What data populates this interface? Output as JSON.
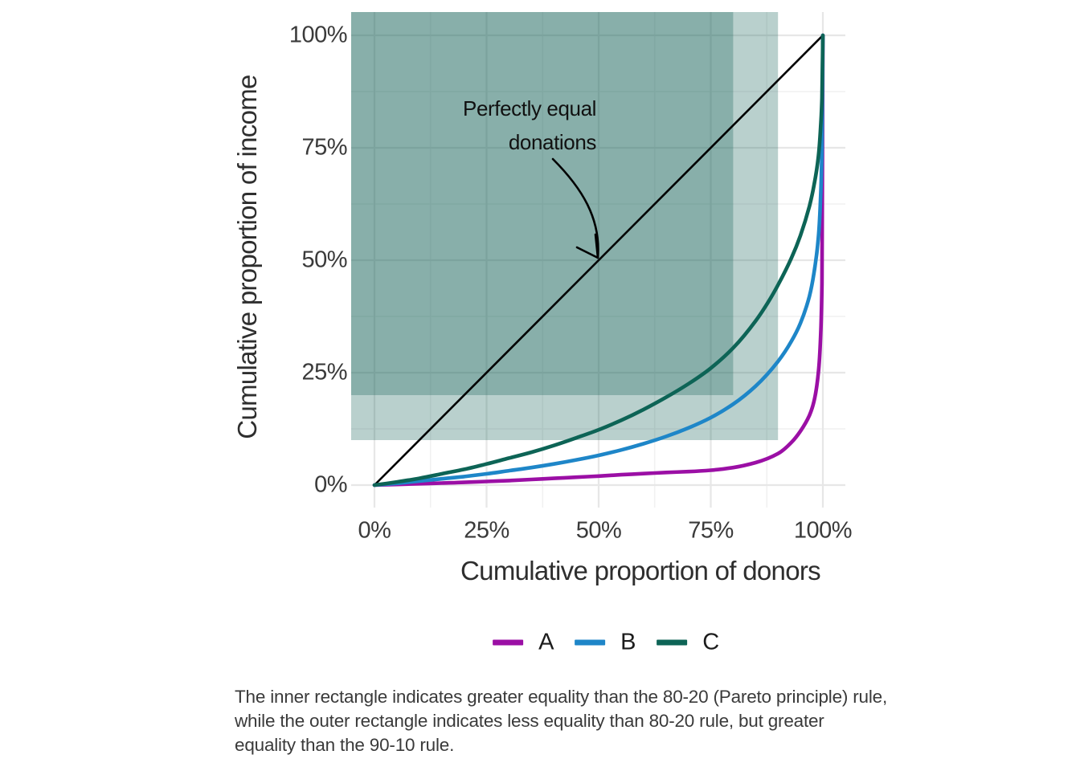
{
  "chart_data": {
    "type": "line",
    "title": "",
    "xlabel": "Cumulative proportion of donors",
    "ylabel": "Cumulative proportion of income",
    "x_ticks": [
      "0%",
      "25%",
      "50%",
      "75%",
      "100%"
    ],
    "y_ticks": [
      "0%",
      "25%",
      "50%",
      "75%",
      "100%"
    ],
    "xlim": [
      0,
      100
    ],
    "ylim": [
      0,
      100
    ],
    "grid": "major and minor light-gray gridlines on white panel",
    "legend_position": "bottom-center",
    "series": [
      {
        "name": "A",
        "color": "#9B0FA5",
        "points": [
          [
            0,
            0
          ],
          [
            5,
            0.15
          ],
          [
            10,
            0.3
          ],
          [
            15,
            0.45
          ],
          [
            20,
            0.6
          ],
          [
            25,
            0.8
          ],
          [
            30,
            1.0
          ],
          [
            35,
            1.25
          ],
          [
            40,
            1.5
          ],
          [
            45,
            1.75
          ],
          [
            50,
            2.0
          ],
          [
            55,
            2.3
          ],
          [
            60,
            2.55
          ],
          [
            65,
            2.8
          ],
          [
            70,
            3.0
          ],
          [
            75,
            3.3
          ],
          [
            80,
            3.9
          ],
          [
            85,
            5.0
          ],
          [
            90,
            7.0
          ],
          [
            93,
            9.5
          ],
          [
            95,
            12.0
          ],
          [
            97,
            15.5
          ],
          [
            98,
            18.5
          ],
          [
            99,
            25.0
          ],
          [
            99.5,
            33.0
          ],
          [
            99.8,
            45.0
          ],
          [
            100,
            100
          ]
        ]
      },
      {
        "name": "B",
        "color": "#1E86C8",
        "points": [
          [
            0,
            0
          ],
          [
            5,
            0.4
          ],
          [
            10,
            0.9
          ],
          [
            15,
            1.4
          ],
          [
            20,
            1.9
          ],
          [
            25,
            2.5
          ],
          [
            30,
            3.2
          ],
          [
            35,
            3.9
          ],
          [
            40,
            4.7
          ],
          [
            45,
            5.6
          ],
          [
            50,
            6.6
          ],
          [
            55,
            7.8
          ],
          [
            60,
            9.2
          ],
          [
            65,
            10.8
          ],
          [
            70,
            12.7
          ],
          [
            75,
            15.0
          ],
          [
            80,
            18.0
          ],
          [
            85,
            22.0
          ],
          [
            90,
            27.5
          ],
          [
            93,
            32.0
          ],
          [
            95,
            36.0
          ],
          [
            97,
            42.0
          ],
          [
            98,
            47.0
          ],
          [
            99,
            55.0
          ],
          [
            99.5,
            64.0
          ],
          [
            99.8,
            75.0
          ],
          [
            100,
            100
          ]
        ]
      },
      {
        "name": "C",
        "color": "#0D6456",
        "points": [
          [
            0,
            0
          ],
          [
            5,
            0.7
          ],
          [
            10,
            1.5
          ],
          [
            15,
            2.5
          ],
          [
            20,
            3.5
          ],
          [
            25,
            4.7
          ],
          [
            30,
            6.0
          ],
          [
            35,
            7.3
          ],
          [
            40,
            8.8
          ],
          [
            45,
            10.5
          ],
          [
            50,
            12.3
          ],
          [
            55,
            14.4
          ],
          [
            60,
            16.8
          ],
          [
            65,
            19.5
          ],
          [
            70,
            22.5
          ],
          [
            75,
            26.0
          ],
          [
            80,
            30.5
          ],
          [
            85,
            36.5
          ],
          [
            88,
            41.0
          ],
          [
            90,
            44.5
          ],
          [
            93,
            50.5
          ],
          [
            95,
            55.5
          ],
          [
            97,
            62.0
          ],
          [
            98,
            66.5
          ],
          [
            99,
            73.0
          ],
          [
            99.5,
            79.5
          ],
          [
            99.8,
            86.0
          ],
          [
            100,
            100
          ]
        ]
      }
    ],
    "reference_line": {
      "name": "equality-diagonal",
      "from": [
        0,
        0
      ],
      "to": [
        100,
        100
      ],
      "color": "#000000"
    },
    "shaded_rects": [
      {
        "name": "inner-rect-80-20",
        "x_range_pct": [
          0,
          80
        ],
        "y_range_pct": [
          20,
          100
        ],
        "fill": "rgba(23,99,89,0.30)",
        "extends_to_panel_edges": true
      },
      {
        "name": "outer-rect-90-10",
        "x_range_pct": [
          0,
          90
        ],
        "y_range_pct": [
          10,
          100
        ],
        "fill": "rgba(23,99,89,0.30)",
        "extends_to_panel_edges": true
      }
    ],
    "annotation": {
      "lines": [
        "Perfectly equal",
        "donations"
      ],
      "arrow_target_pct": [
        50,
        50
      ]
    }
  },
  "caption": {
    "lines": [
      "The inner rectangle indicates greater equality than the 80-20 (Pareto principle) rule,",
      "while the outer rectangle indicates less equality than 80-20 rule, but greater",
      "equality than the 90-10 rule."
    ]
  }
}
